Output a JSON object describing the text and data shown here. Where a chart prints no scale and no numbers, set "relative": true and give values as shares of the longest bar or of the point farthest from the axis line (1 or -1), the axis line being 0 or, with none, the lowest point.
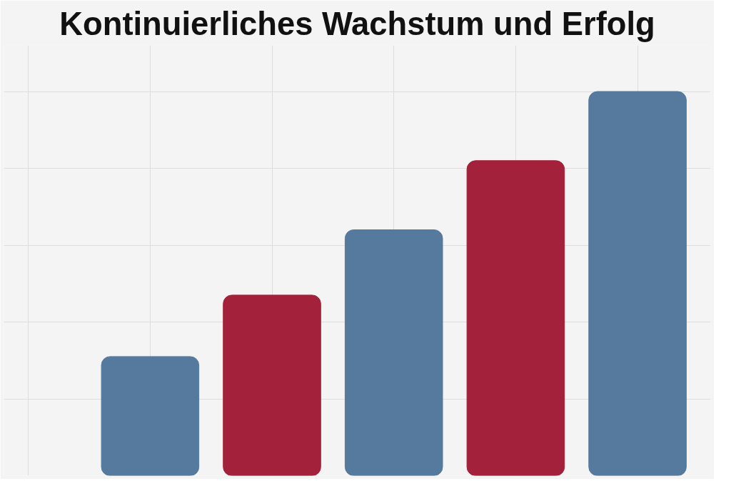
{
  "chart_data": {
    "type": "bar",
    "title": "Kontinuierliches Wachstum und Erfolg",
    "relative": true,
    "grid": true,
    "categories": [
      null,
      null,
      null,
      null,
      null
    ],
    "values": [
      0.31,
      0.47,
      0.64,
      0.82,
      1.0
    ],
    "colors": [
      "#557a9e",
      "#a3213b",
      "#557a9e",
      "#a3213b",
      "#557a9e"
    ]
  }
}
